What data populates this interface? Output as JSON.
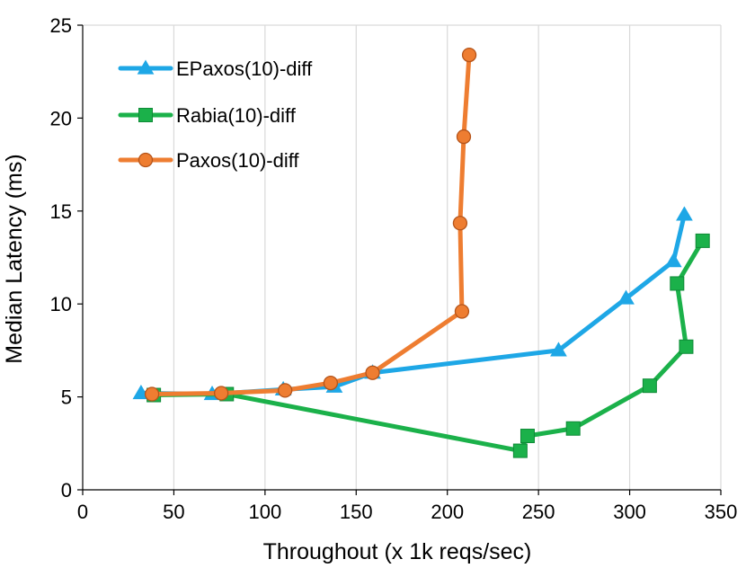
{
  "chart_data": {
    "type": "line",
    "xlabel": "Throughout (x 1k reqs/sec)",
    "ylabel": "Median Latency (ms)",
    "xlim": [
      0,
      350
    ],
    "ylim": [
      0,
      25
    ],
    "xticks": [
      0,
      50,
      100,
      150,
      200,
      250,
      300,
      350
    ],
    "yticks": [
      0,
      5,
      10,
      15,
      20,
      25
    ],
    "grid": "vertical",
    "legend_position": "top-left",
    "series": [
      {
        "name": "EPaxos(10)-diff",
        "color": "#1ea7e6",
        "marker": "triangle",
        "points": [
          [
            32,
            5.2
          ],
          [
            71,
            5.15
          ],
          [
            110,
            5.4
          ],
          [
            138,
            5.55
          ],
          [
            159,
            6.3
          ],
          [
            261,
            7.5
          ],
          [
            298,
            10.3
          ],
          [
            324,
            12.3
          ],
          [
            330,
            14.8
          ]
        ]
      },
      {
        "name": "Rabia(10)-diff",
        "color": "#1bb14a",
        "marker": "square",
        "points": [
          [
            39,
            5.1
          ],
          [
            79,
            5.15
          ],
          [
            240,
            2.1
          ],
          [
            244,
            2.9
          ],
          [
            269,
            3.3
          ],
          [
            311,
            5.6
          ],
          [
            331,
            7.7
          ],
          [
            326,
            11.1
          ],
          [
            340,
            13.4
          ]
        ]
      },
      {
        "name": "Paxos(10)-diff",
        "color": "#ee7d31",
        "marker": "circle",
        "points": [
          [
            38,
            5.15
          ],
          [
            76,
            5.2
          ],
          [
            111,
            5.35
          ],
          [
            136,
            5.75
          ],
          [
            159,
            6.3
          ],
          [
            208,
            9.6
          ],
          [
            207,
            14.35
          ],
          [
            209,
            19.0
          ],
          [
            212,
            23.4
          ]
        ]
      }
    ]
  }
}
